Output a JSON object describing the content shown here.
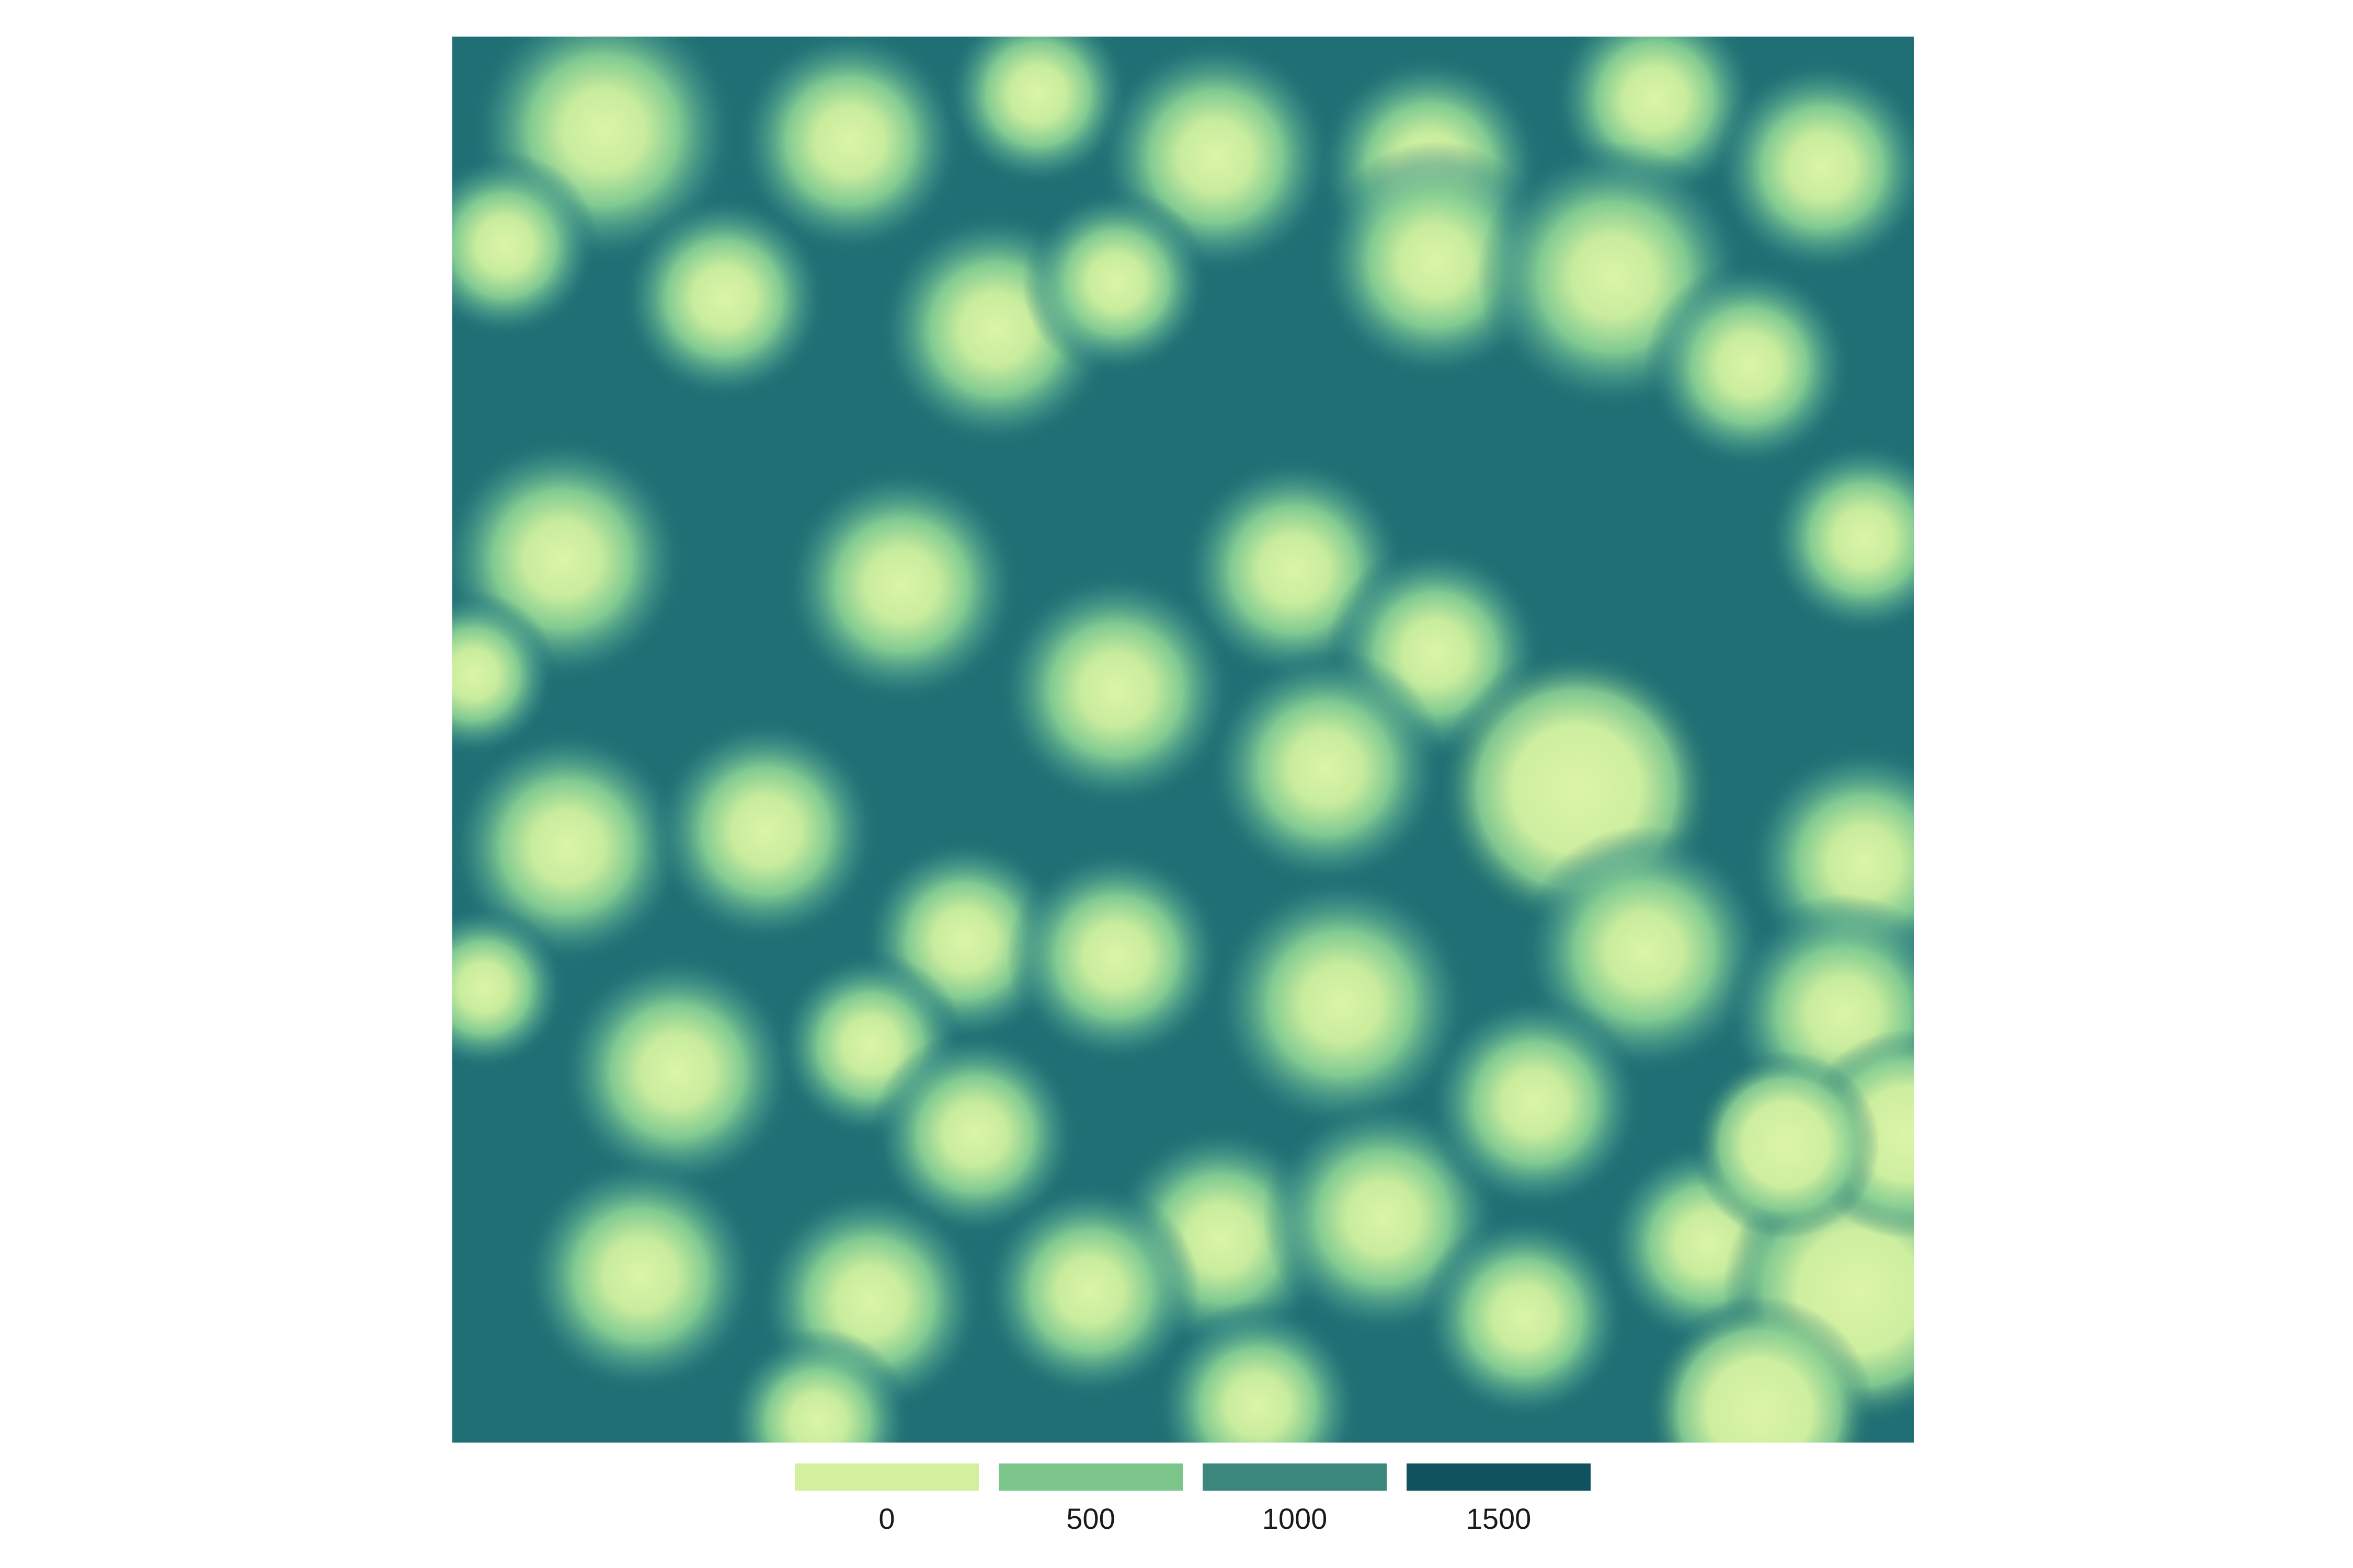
{
  "map": {
    "type": "raster-distance",
    "palette": {
      "low": "#d9f2a4",
      "mid_low": "#7fc98f",
      "mid_high": "#3f8c80",
      "high": "#0f4d5c"
    }
  },
  "legend": {
    "items": [
      {
        "label": "0",
        "color": "#d4ef9e"
      },
      {
        "label": "500",
        "color": "#7cc68c"
      },
      {
        "label": "1000",
        "color": "#3b877b"
      },
      {
        "label": "1500",
        "color": "#11525f"
      }
    ]
  }
}
